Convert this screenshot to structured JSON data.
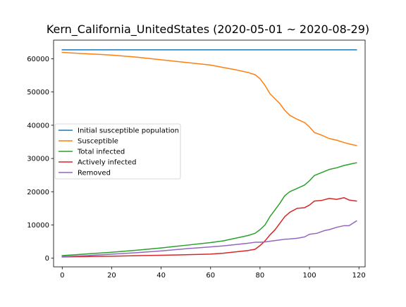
{
  "chart_data": {
    "type": "line",
    "title": "Kern_California_UnitedStates (2020-05-01 ~ 2020-08-29)",
    "xlabel": "",
    "ylabel": "",
    "xlim": [
      -3.5,
      122.5
    ],
    "ylim": [
      -2600,
      65600
    ],
    "xticks": [
      0,
      20,
      40,
      60,
      80,
      100,
      120
    ],
    "yticks": [
      0,
      10000,
      20000,
      30000,
      40000,
      50000,
      60000
    ],
    "grid": false,
    "legend_position": "center-left",
    "series": [
      {
        "name": "Initial susceptible population",
        "color": "#1f77b4",
        "points": [
          [
            0,
            62700
          ],
          [
            119,
            62700
          ]
        ]
      },
      {
        "name": "Susceptible",
        "color": "#ff7f0e",
        "points": [
          [
            0,
            61900
          ],
          [
            10,
            61500
          ],
          [
            20,
            61100
          ],
          [
            30,
            60500
          ],
          [
            40,
            59700
          ],
          [
            50,
            58900
          ],
          [
            60,
            58100
          ],
          [
            65,
            57400
          ],
          [
            70,
            56700
          ],
          [
            75,
            55900
          ],
          [
            78,
            55200
          ],
          [
            80,
            54000
          ],
          [
            82,
            52000
          ],
          [
            84,
            49500
          ],
          [
            86,
            48000
          ],
          [
            88,
            46500
          ],
          [
            90,
            44500
          ],
          [
            92,
            43000
          ],
          [
            95,
            41800
          ],
          [
            98,
            40800
          ],
          [
            100,
            39500
          ],
          [
            102,
            37800
          ],
          [
            105,
            37000
          ],
          [
            108,
            36000
          ],
          [
            111,
            35500
          ],
          [
            114,
            34800
          ],
          [
            117,
            34200
          ],
          [
            119,
            33900
          ]
        ]
      },
      {
        "name": "Total infected",
        "color": "#2ca02c",
        "points": [
          [
            0,
            800
          ],
          [
            10,
            1300
          ],
          [
            20,
            1800
          ],
          [
            30,
            2400
          ],
          [
            40,
            3100
          ],
          [
            50,
            3900
          ],
          [
            60,
            4700
          ],
          [
            65,
            5200
          ],
          [
            70,
            6000
          ],
          [
            75,
            6800
          ],
          [
            78,
            7500
          ],
          [
            80,
            8600
          ],
          [
            82,
            10000
          ],
          [
            84,
            12500
          ],
          [
            86,
            14500
          ],
          [
            88,
            16500
          ],
          [
            90,
            18800
          ],
          [
            92,
            20000
          ],
          [
            95,
            21000
          ],
          [
            98,
            22000
          ],
          [
            100,
            23300
          ],
          [
            102,
            24900
          ],
          [
            105,
            25800
          ],
          [
            108,
            26700
          ],
          [
            111,
            27200
          ],
          [
            114,
            27900
          ],
          [
            117,
            28400
          ],
          [
            119,
            28700
          ]
        ]
      },
      {
        "name": "Actively infected",
        "color": "#d62728",
        "points": [
          [
            0,
            400
          ],
          [
            10,
            500
          ],
          [
            20,
            600
          ],
          [
            30,
            750
          ],
          [
            40,
            900
          ],
          [
            50,
            1050
          ],
          [
            60,
            1250
          ],
          [
            65,
            1500
          ],
          [
            70,
            1900
          ],
          [
            75,
            2300
          ],
          [
            78,
            2700
          ],
          [
            80,
            3800
          ],
          [
            82,
            5200
          ],
          [
            84,
            7000
          ],
          [
            86,
            8500
          ],
          [
            88,
            10500
          ],
          [
            90,
            12500
          ],
          [
            92,
            13800
          ],
          [
            95,
            15000
          ],
          [
            98,
            15200
          ],
          [
            100,
            16000
          ],
          [
            102,
            17200
          ],
          [
            105,
            17400
          ],
          [
            108,
            18000
          ],
          [
            111,
            17700
          ],
          [
            114,
            18200
          ],
          [
            116,
            17500
          ],
          [
            119,
            17200
          ]
        ]
      },
      {
        "name": "Removed",
        "color": "#9467bd",
        "points": [
          [
            0,
            500
          ],
          [
            10,
            800
          ],
          [
            20,
            1200
          ],
          [
            30,
            1650
          ],
          [
            40,
            2200
          ],
          [
            50,
            2850
          ],
          [
            60,
            3400
          ],
          [
            65,
            3700
          ],
          [
            70,
            4100
          ],
          [
            75,
            4500
          ],
          [
            78,
            4800
          ],
          [
            80,
            4800
          ],
          [
            82,
            4900
          ],
          [
            85,
            5200
          ],
          [
            88,
            5500
          ],
          [
            90,
            5700
          ],
          [
            92,
            5800
          ],
          [
            95,
            6000
          ],
          [
            98,
            6400
          ],
          [
            100,
            7200
          ],
          [
            103,
            7500
          ],
          [
            106,
            8300
          ],
          [
            108,
            8600
          ],
          [
            111,
            9300
          ],
          [
            114,
            9800
          ],
          [
            116,
            9800
          ],
          [
            119,
            11200
          ]
        ]
      }
    ]
  }
}
